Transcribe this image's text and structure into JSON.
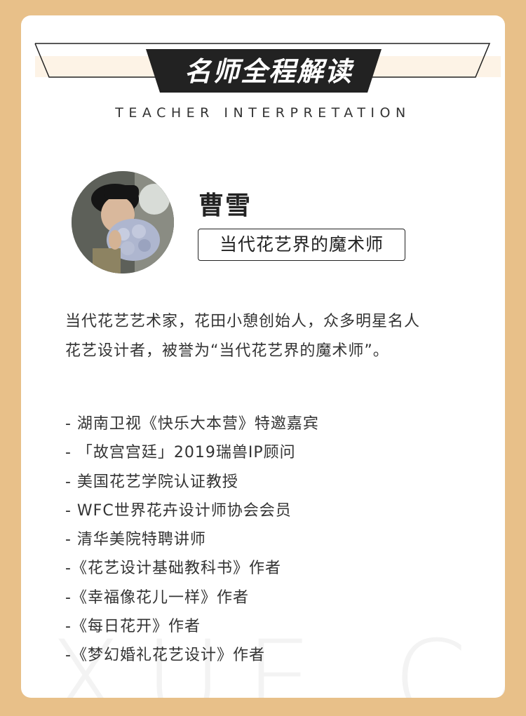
{
  "colors": {
    "background": "#e8c089",
    "accent_band": "#fdf3e6",
    "banner_dark": "#222222"
  },
  "header": {
    "title": "名师全程解读",
    "subtitle": "TEACHER INTERPRETATION"
  },
  "profile": {
    "name": "曹雪",
    "title": "当代花艺界的魔术师",
    "avatar_icon": "avatar-photo"
  },
  "bio": {
    "line1": "当代花艺艺术家，花田小憩创始人，众多明星名人",
    "line2": "花艺设计者，被誉为“当代花艺界的魔术师”。"
  },
  "credentials": [
    "- 湖南卫视《快乐大本营》特邀嘉宾",
    "- 「故宫宫廷」2019瑞兽IP顾问",
    "- 美国花艺学院认证教授",
    "- WFC世界花卉设计师协会会员",
    "- 清华美院特聘讲师",
    "-《花艺设计基础教科书》作者",
    "-《幸福像花儿一样》作者",
    "-《每日花开》作者",
    "-《梦幻婚礼花艺设计》作者"
  ],
  "watermark": "XUE CAO"
}
